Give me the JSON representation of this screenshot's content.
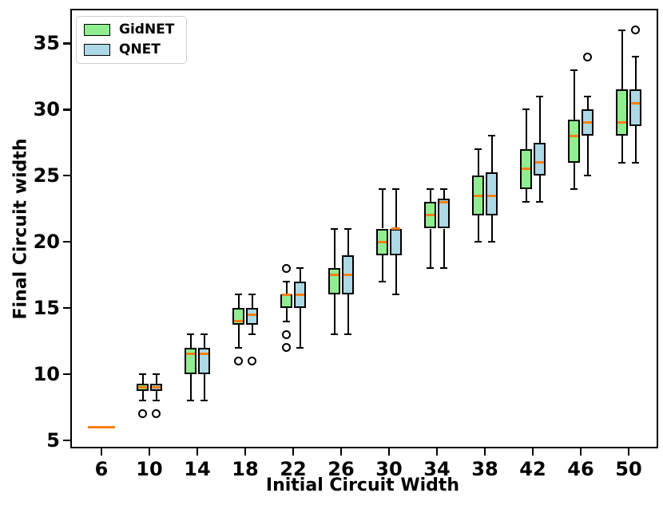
{
  "chart_data": {
    "type": "boxplot",
    "xlabel": "Initial Circuit Width",
    "ylabel": "Final Circuit width",
    "categories": [
      6,
      10,
      14,
      18,
      22,
      26,
      30,
      34,
      38,
      42,
      46,
      50
    ],
    "y_ticks": [
      5,
      10,
      15,
      20,
      25,
      30,
      35
    ],
    "ylim": [
      4.5,
      37.5
    ],
    "grid": false,
    "legend_position": "upper left",
    "median_color": "#ff7f0e",
    "series": [
      {
        "name": "GidNET",
        "color": "#90ee90",
        "boxes": [
          {
            "whislo": 6,
            "q1": 6,
            "med": 6,
            "q3": 6,
            "whishi": 6,
            "fliers": []
          },
          {
            "whislo": 8,
            "q1": 8.75,
            "med": 9,
            "q3": 9.25,
            "whishi": 10,
            "fliers": [
              7
            ]
          },
          {
            "whislo": 8,
            "q1": 10,
            "med": 11.5,
            "q3": 12,
            "whishi": 13,
            "fliers": []
          },
          {
            "whislo": 12,
            "q1": 13.75,
            "med": 14,
            "q3": 15,
            "whishi": 16,
            "fliers": [
              11
            ]
          },
          {
            "whislo": 14,
            "q1": 15,
            "med": 16,
            "q3": 16,
            "whishi": 17,
            "fliers": [
              18,
              13,
              12
            ]
          },
          {
            "whislo": 13,
            "q1": 16,
            "med": 17.5,
            "q3": 18,
            "whishi": 21,
            "fliers": []
          },
          {
            "whislo": 17,
            "q1": 19,
            "med": 20,
            "q3": 21,
            "whishi": 24,
            "fliers": []
          },
          {
            "whislo": 18,
            "q1": 21,
            "med": 22,
            "q3": 23,
            "whishi": 24,
            "fliers": []
          },
          {
            "whislo": 20,
            "q1": 22,
            "med": 23.5,
            "q3": 25,
            "whishi": 27,
            "fliers": []
          },
          {
            "whislo": 23,
            "q1": 24,
            "med": 25.5,
            "q3": 27,
            "whishi": 30,
            "fliers": []
          },
          {
            "whislo": 24,
            "q1": 26,
            "med": 28,
            "q3": 29.25,
            "whishi": 33,
            "fliers": []
          },
          {
            "whislo": 26,
            "q1": 28,
            "med": 29,
            "q3": 31.5,
            "whishi": 36,
            "fliers": []
          }
        ]
      },
      {
        "name": "QNET",
        "color": "#add8e6",
        "boxes": [
          {
            "whislo": 6,
            "q1": 6,
            "med": 6,
            "q3": 6,
            "whishi": 6,
            "fliers": []
          },
          {
            "whislo": 8,
            "q1": 8.75,
            "med": 9,
            "q3": 9.25,
            "whishi": 10,
            "fliers": [
              7
            ]
          },
          {
            "whislo": 8,
            "q1": 10,
            "med": 11.5,
            "q3": 12,
            "whishi": 13,
            "fliers": []
          },
          {
            "whislo": 13,
            "q1": 13.75,
            "med": 14.5,
            "q3": 15,
            "whishi": 16,
            "fliers": [
              11
            ]
          },
          {
            "whislo": 12,
            "q1": 15,
            "med": 16,
            "q3": 17,
            "whishi": 18,
            "fliers": []
          },
          {
            "whislo": 13,
            "q1": 16,
            "med": 17.5,
            "q3": 19,
            "whishi": 21,
            "fliers": []
          },
          {
            "whislo": 16,
            "q1": 19,
            "med": 21,
            "q3": 21,
            "whishi": 24,
            "fliers": []
          },
          {
            "whislo": 18,
            "q1": 21,
            "med": 23,
            "q3": 23.25,
            "whishi": 24,
            "fliers": []
          },
          {
            "whislo": 20,
            "q1": 22,
            "med": 23.5,
            "q3": 25.25,
            "whishi": 28,
            "fliers": []
          },
          {
            "whislo": 23,
            "q1": 25,
            "med": 26,
            "q3": 27.5,
            "whishi": 31,
            "fliers": []
          },
          {
            "whislo": 25,
            "q1": 28,
            "med": 29,
            "q3": 30,
            "whishi": 31,
            "fliers": [
              34
            ]
          },
          {
            "whislo": 26,
            "q1": 28.75,
            "med": 30.5,
            "q3": 31.5,
            "whishi": 34,
            "fliers": [
              36
            ]
          }
        ]
      }
    ]
  }
}
